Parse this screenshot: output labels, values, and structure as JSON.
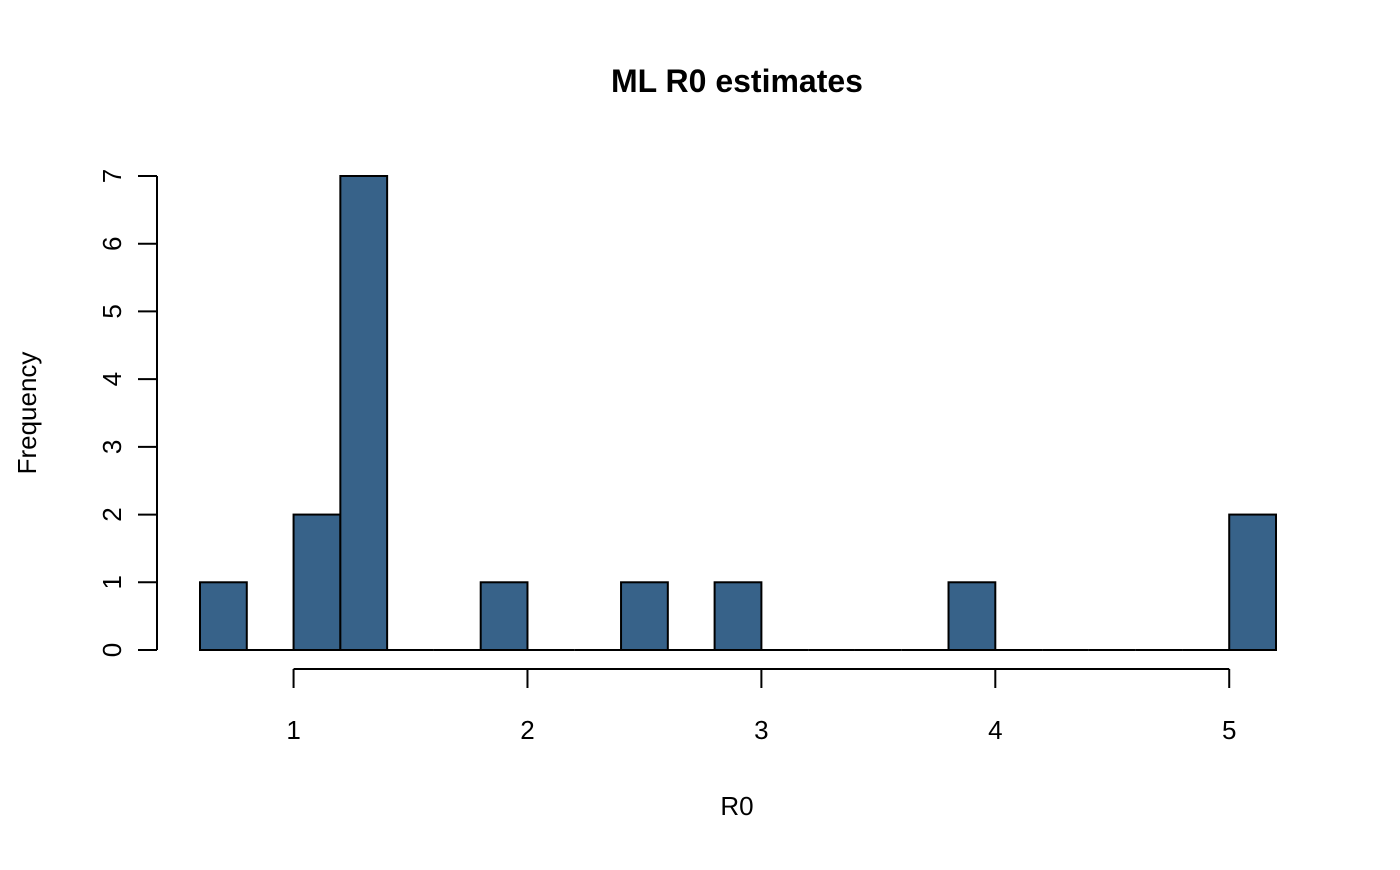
{
  "chart_data": {
    "type": "bar",
    "title": "ML R0 estimates",
    "xlabel": "R0",
    "ylabel": "Frequency",
    "bar_color": "#376289",
    "border_color": "#000000",
    "grid": false,
    "legend": "none",
    "xlim": [
      0.6,
      5.2
    ],
    "ylim": [
      0,
      7
    ],
    "x_ticks": [
      1,
      2,
      3,
      4,
      5
    ],
    "x_tick_labels": [
      "1",
      "2",
      "3",
      "4",
      "5"
    ],
    "y_ticks": [
      0,
      1,
      2,
      3,
      4,
      5,
      6,
      7
    ],
    "y_tick_labels": [
      "0",
      "1",
      "2",
      "3",
      "4",
      "5",
      "6",
      "7"
    ],
    "bin_width": 0.2,
    "bin_edges": [
      0.6,
      0.8,
      1.0,
      1.2,
      1.4,
      1.6,
      1.8,
      2.0,
      2.2,
      2.4,
      2.6,
      2.8,
      3.0,
      3.2,
      3.4,
      3.6,
      3.8,
      4.0,
      4.2,
      4.4,
      4.6,
      4.8,
      5.0,
      5.2
    ],
    "counts": [
      1,
      0,
      2,
      7,
      0,
      0,
      1,
      0,
      0,
      1,
      0,
      1,
      0,
      0,
      0,
      0,
      1,
      0,
      0,
      0,
      0,
      0,
      2
    ]
  }
}
